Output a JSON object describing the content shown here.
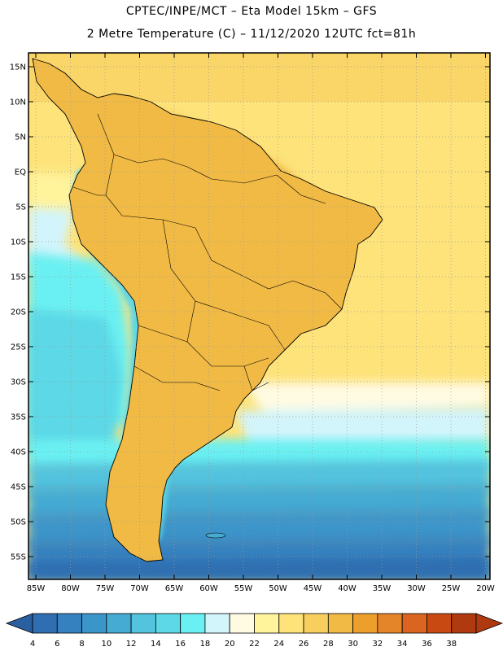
{
  "header": {
    "title_line1": "CPTEC/INPE/MCT –  Eta Model 15km – GFS",
    "title_line2": "2 Metre Temperature (C) – 11/12/2020 12UTC fct=81h"
  },
  "map": {
    "lat_labels": [
      "15N",
      "10N",
      "5N",
      "EQ",
      "5S",
      "10S",
      "15S",
      "20S",
      "25S",
      "30S",
      "35S",
      "40S",
      "45S",
      "50S",
      "55S"
    ],
    "lon_labels": [
      "85W",
      "80W",
      "75W",
      "70W",
      "65W",
      "60W",
      "55W",
      "50W",
      "45W",
      "40W",
      "35W",
      "30W",
      "25W",
      "20W"
    ],
    "lat_values": [
      15,
      10,
      5,
      0,
      -5,
      -10,
      -15,
      -20,
      -25,
      -30,
      -35,
      -40,
      -45,
      -50,
      -55
    ],
    "lon_values": [
      -85,
      -80,
      -75,
      -70,
      -65,
      -60,
      -55,
      -50,
      -45,
      -40,
      -35,
      -30,
      -25,
      -20
    ]
  },
  "colorbar": {
    "labels": [
      "4",
      "6",
      "8",
      "10",
      "12",
      "14",
      "16",
      "18",
      "20",
      "22",
      "24",
      "26",
      "28",
      "30",
      "32",
      "34",
      "36",
      "38"
    ],
    "colors": [
      "#2f6eb0",
      "#3581bf",
      "#3c95c9",
      "#45abd3",
      "#53c3de",
      "#5cd8e6",
      "#6af0f2",
      "#d2f4fb",
      "#fffbe3",
      "#fff39c",
      "#fde37a",
      "#f8cf5f",
      "#f1ba45",
      "#eca02b",
      "#e5852a",
      "#d96520",
      "#c84a12",
      "#b03a10"
    ],
    "low_arrow_color": "#2a5fa0",
    "high_arrow_color": "#b03a10"
  }
}
